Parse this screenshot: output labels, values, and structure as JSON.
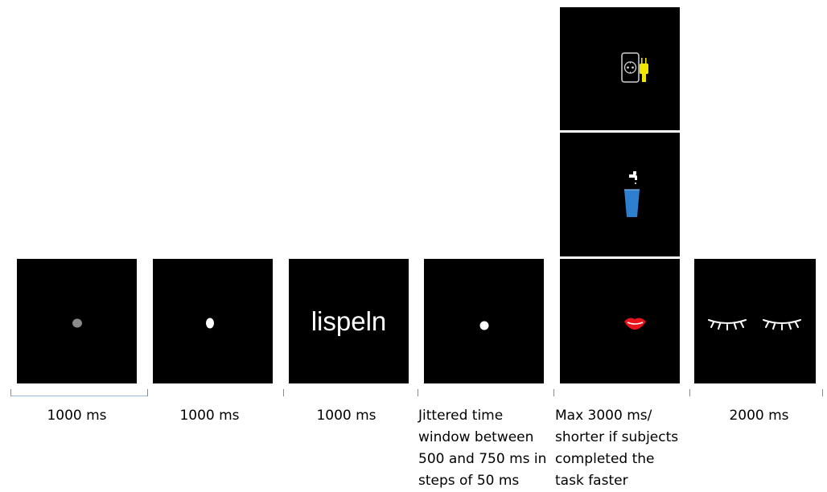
{
  "stimulus_word": "lispeln",
  "durations": {
    "d1": "1000 ms",
    "d2": "1000 ms",
    "d3": "1000 ms",
    "d4": [
      "Jittered time",
      "window between",
      "500 and 750 ms in",
      "steps of 50 ms"
    ],
    "d5": [
      "Max 3000 ms/",
      "shorter if subjects",
      "completed the",
      "task faster"
    ],
    "d6": "2000 ms"
  },
  "icons": {
    "panel1": "gray-fixation-dot-icon",
    "panel2": "white-oval-dot-icon",
    "panel4": "white-fixation-dot-icon",
    "panel5_top": "socket-and-plug-icon",
    "panel5_middle": "faucet-and-glass-icon",
    "panel5_bottom": "red-lips-icon",
    "panel6": "closed-eyes-icon"
  },
  "colors": {
    "panel_background": "#000000",
    "gray_dot": "#8a8a8a",
    "plug_yellow": "#f2e600",
    "glass_blue": "#2f7fd0",
    "lips_red": "#e8141b"
  }
}
